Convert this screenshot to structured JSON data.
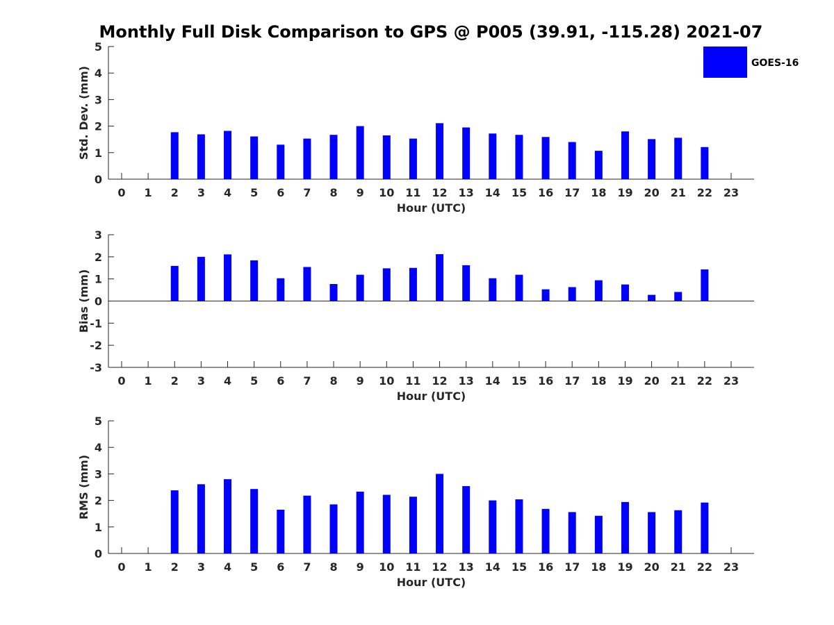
{
  "title": "Monthly Full Disk Comparison to GPS @ P005 (39.91, -115.28) 2021-07",
  "legend": {
    "label": "GOES-16",
    "color": "#0000ff",
    "placement": "top-right"
  },
  "chart_data": [
    {
      "type": "bar",
      "ylabel": "Std. Dev. (mm)",
      "xlabel": "Hour (UTC)",
      "ylim": [
        0,
        5
      ],
      "yticks": [
        "0",
        "1",
        "2",
        "3",
        "4",
        "5"
      ],
      "categories": [
        "0",
        "1",
        "2",
        "3",
        "4",
        "5",
        "6",
        "7",
        "8",
        "9",
        "10",
        "11",
        "12",
        "13",
        "14",
        "15",
        "16",
        "17",
        "18",
        "19",
        "20",
        "21",
        "22",
        "23"
      ],
      "series": [
        {
          "name": "GOES-16",
          "values": [
            null,
            null,
            1.77,
            1.69,
            1.82,
            1.61,
            1.3,
            1.53,
            1.67,
            2.0,
            1.65,
            1.53,
            2.11,
            1.95,
            1.72,
            1.67,
            1.59,
            1.4,
            1.07,
            1.8,
            1.51,
            1.56,
            1.21,
            null
          ]
        }
      ]
    },
    {
      "type": "bar",
      "ylabel": "Bias (mm)",
      "xlabel": "Hour (UTC)",
      "ylim": [
        -3,
        3
      ],
      "yticks": [
        "-3",
        "-2",
        "-1",
        "0",
        "1",
        "2",
        "3"
      ],
      "zero_line": true,
      "categories": [
        "0",
        "1",
        "2",
        "3",
        "4",
        "5",
        "6",
        "7",
        "8",
        "9",
        "10",
        "11",
        "12",
        "13",
        "14",
        "15",
        "16",
        "17",
        "18",
        "19",
        "20",
        "21",
        "22",
        "23"
      ],
      "series": [
        {
          "name": "GOES-16",
          "values": [
            null,
            null,
            1.59,
            2.0,
            2.11,
            1.84,
            1.03,
            1.54,
            0.77,
            1.19,
            1.48,
            1.5,
            2.12,
            1.62,
            1.03,
            1.19,
            0.53,
            0.63,
            0.94,
            0.75,
            0.28,
            0.41,
            1.43,
            null
          ]
        }
      ]
    },
    {
      "type": "bar",
      "ylabel": "RMS (mm)",
      "xlabel": "Hour (UTC)",
      "ylim": [
        0,
        5
      ],
      "yticks": [
        "0",
        "1",
        "2",
        "3",
        "4",
        "5"
      ],
      "categories": [
        "0",
        "1",
        "2",
        "3",
        "4",
        "5",
        "6",
        "7",
        "8",
        "9",
        "10",
        "11",
        "12",
        "13",
        "14",
        "15",
        "16",
        "17",
        "18",
        "19",
        "20",
        "21",
        "22",
        "23"
      ],
      "series": [
        {
          "name": "GOES-16",
          "values": [
            null,
            null,
            2.38,
            2.61,
            2.8,
            2.43,
            1.65,
            2.18,
            1.85,
            2.33,
            2.21,
            2.14,
            3.0,
            2.54,
            2.0,
            2.04,
            1.68,
            1.56,
            1.42,
            1.94,
            1.56,
            1.63,
            1.92,
            null
          ]
        }
      ]
    }
  ]
}
